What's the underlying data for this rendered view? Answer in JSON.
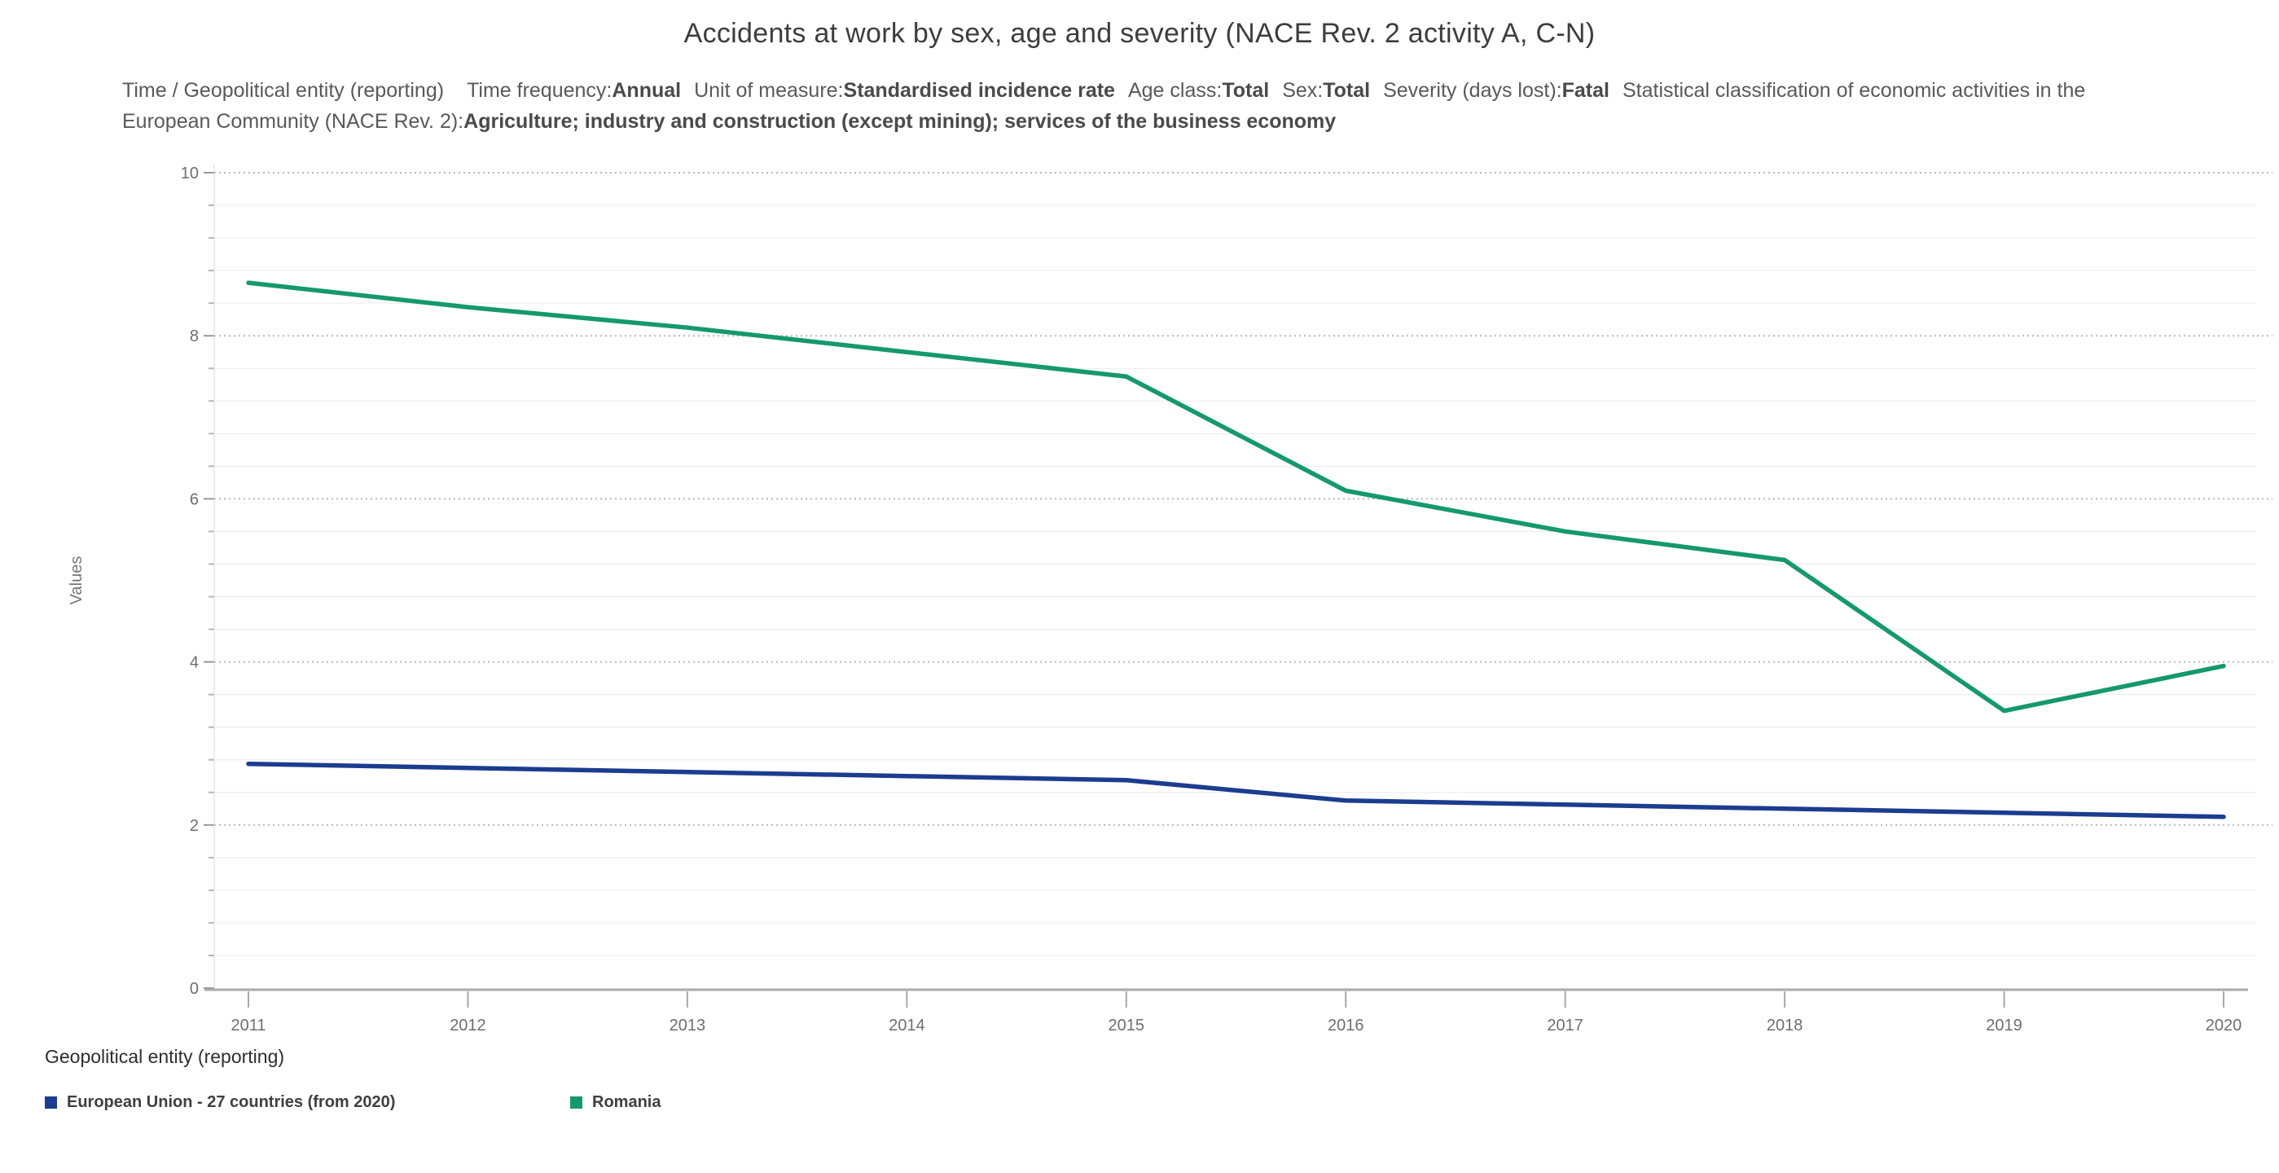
{
  "chart_data": {
    "type": "line",
    "title": "Accidents at work by sex, age and severity (NACE Rev. 2 activity A, C-N)",
    "categories": [
      "2011",
      "2012",
      "2013",
      "2014",
      "2015",
      "2016",
      "2017",
      "2018",
      "2019",
      "2020"
    ],
    "series": [
      {
        "name": "European Union - 27 countries (from 2020)",
        "color": "#1c3c8f",
        "values": [
          2.75,
          2.7,
          2.65,
          2.6,
          2.55,
          2.3,
          2.25,
          2.2,
          2.15,
          2.1
        ]
      },
      {
        "name": "Romania",
        "color": "#15996b",
        "values": [
          8.65,
          8.35,
          8.1,
          7.8,
          7.5,
          6.1,
          5.6,
          5.25,
          3.4,
          3.95
        ]
      }
    ],
    "xlabel": "",
    "ylabel": "Values",
    "ylim": [
      0,
      10
    ],
    "yticks": [
      0,
      2,
      4,
      6,
      8,
      10
    ],
    "ytick_major": 2,
    "ytick_minor": 0.4,
    "grid": true,
    "legend": {
      "title": "Geopolitical entity (reporting)",
      "position": "bottom-left"
    }
  },
  "subtitle": {
    "lead": "Time / Geopolitical entity (reporting)",
    "filters": [
      {
        "label": "Time frequency:",
        "value": "Annual"
      },
      {
        "label": "Unit of measure:",
        "value": "Standardised incidence rate"
      },
      {
        "label": "Age class:",
        "value": "Total"
      },
      {
        "label": "Sex:",
        "value": "Total"
      },
      {
        "label": "Severity (days lost):",
        "value": "Fatal"
      },
      {
        "label": "Statistical classification of economic activities in the European Community (NACE Rev. 2):",
        "value": "Agriculture; industry and construction (except mining); services of the business economy"
      }
    ]
  }
}
